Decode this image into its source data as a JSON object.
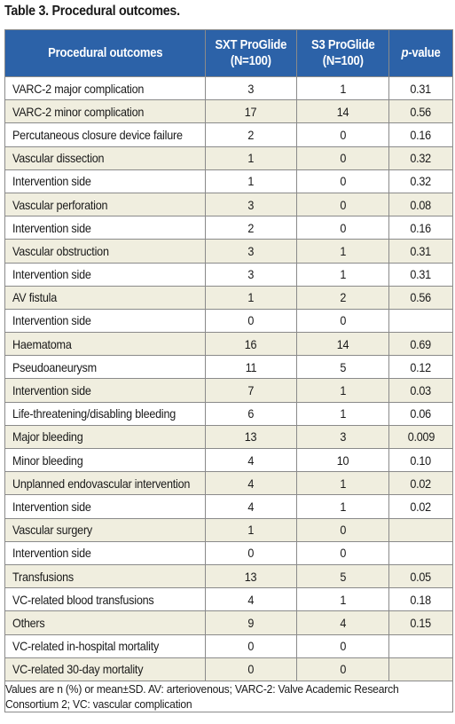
{
  "caption": "Table 3. Procedural outcomes.",
  "colors": {
    "header_bg": "#2c62a8",
    "header_text": "#ffffff",
    "shaded_row": "#f0eedf",
    "border": "#8a8a8a"
  },
  "table": {
    "headers": {
      "outcome": "Procedural outcomes",
      "sxt_line1": "SXT ProGlide",
      "sxt_line2": "(N=100)",
      "s3_line1": "S3 ProGlide",
      "s3_line2": "(N=100)",
      "p_italic": "p",
      "p_rest": "-value"
    },
    "rows": [
      {
        "label": "VARC-2 major complication",
        "sxt": "3",
        "s3": "1",
        "p": "0.31"
      },
      {
        "label": "VARC-2 minor complication",
        "sxt": "17",
        "s3": "14",
        "p": "0.56"
      },
      {
        "label": "Percutaneous closure device failure",
        "sxt": "2",
        "s3": "0",
        "p": "0.16"
      },
      {
        "label": "Vascular dissection",
        "sxt": "1",
        "s3": "0",
        "p": "0.32"
      },
      {
        "label": "Intervention side",
        "sxt": "1",
        "s3": "0",
        "p": "0.32"
      },
      {
        "label": "Vascular perforation",
        "sxt": "3",
        "s3": "0",
        "p": "0.08"
      },
      {
        "label": "Intervention side",
        "sxt": "2",
        "s3": "0",
        "p": "0.16"
      },
      {
        "label": "Vascular obstruction",
        "sxt": "3",
        "s3": "1",
        "p": "0.31"
      },
      {
        "label": "Intervention side",
        "sxt": "3",
        "s3": "1",
        "p": "0.31"
      },
      {
        "label": "AV fistula",
        "sxt": "1",
        "s3": "2",
        "p": "0.56"
      },
      {
        "label": "Intervention side",
        "sxt": "0",
        "s3": "0",
        "p": ""
      },
      {
        "label": "Haematoma",
        "sxt": "16",
        "s3": "14",
        "p": "0.69"
      },
      {
        "label": "Pseudoaneurysm",
        "sxt": "11",
        "s3": "5",
        "p": "0.12"
      },
      {
        "label": "Intervention side",
        "sxt": "7",
        "s3": "1",
        "p": "0.03"
      },
      {
        "label": "Life-threatening/disabling bleeding",
        "sxt": "6",
        "s3": "1",
        "p": "0.06"
      },
      {
        "label": "Major bleeding",
        "sxt": "13",
        "s3": "3",
        "p": "0.009"
      },
      {
        "label": "Minor bleeding",
        "sxt": "4",
        "s3": "10",
        "p": "0.10"
      },
      {
        "label": "Unplanned endovascular intervention",
        "sxt": "4",
        "s3": "1",
        "p": "0.02"
      },
      {
        "label": "Intervention side",
        "sxt": "4",
        "s3": "1",
        "p": "0.02"
      },
      {
        "label": "Vascular surgery",
        "sxt": "1",
        "s3": "0",
        "p": ""
      },
      {
        "label": "Intervention side",
        "sxt": "0",
        "s3": "0",
        "p": ""
      },
      {
        "label": "Transfusions",
        "sxt": "13",
        "s3": "5",
        "p": "0.05"
      },
      {
        "label": "VC-related blood transfusions",
        "sxt": "4",
        "s3": "1",
        "p": "0.18"
      },
      {
        "label": "Others",
        "sxt": "9",
        "s3": "4",
        "p": "0.15"
      },
      {
        "label": "VC-related in-hospital mortality",
        "sxt": "0",
        "s3": "0",
        "p": ""
      },
      {
        "label": "VC-related 30-day mortality",
        "sxt": "0",
        "s3": "0",
        "p": ""
      }
    ],
    "footnote": "Values are n (%) or mean±SD. AV: arteriovenous; VARC-2: Valve Academic Research Consortium 2; VC: vascular complication"
  }
}
